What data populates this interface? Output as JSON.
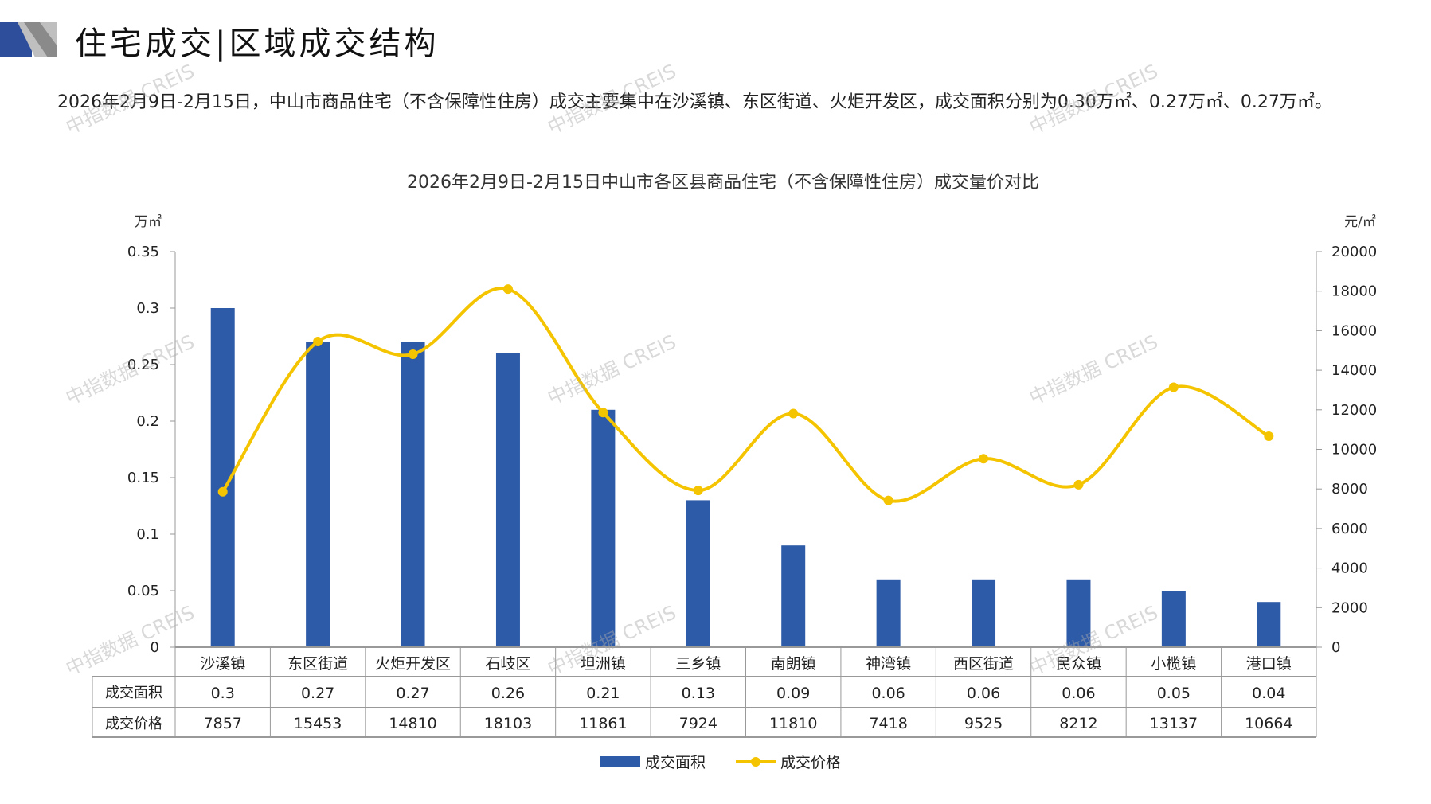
{
  "header": {
    "title": "住宅成交|区域成交结构"
  },
  "summary": "2026年2月9日-2月15日，中山市商品住宅（不含保障性住房）成交主要集中在沙溪镇、东区街道、火炬开发区，成交面积分别为0.30万㎡、0.27万㎡、0.27万㎡。",
  "watermark": "中指数据 CREIS",
  "colors": {
    "bar": "#2E5BA8",
    "line": "#F5C400",
    "axis": "#999999"
  },
  "chart_data": {
    "type": "bar+line",
    "title": "2026年2月9日-2月15日中山市各区县商品住宅（不含保障性住房）成交量价对比",
    "ylabel_left": "万㎡",
    "ylabel_right": "元/㎡",
    "ylim_left": [
      0,
      0.35
    ],
    "yticks_left": [
      "0",
      "0.05",
      "0.1",
      "0.15",
      "0.2",
      "0.25",
      "0.3",
      "0.35"
    ],
    "ylim_right": [
      0,
      20000
    ],
    "yticks_right": [
      "0",
      "2000",
      "4000",
      "6000",
      "8000",
      "10000",
      "12000",
      "14000",
      "16000",
      "18000",
      "20000"
    ],
    "categories": [
      "沙溪镇",
      "东区街道",
      "火炬开发区",
      "石岐区",
      "坦洲镇",
      "三乡镇",
      "南朗镇",
      "神湾镇",
      "西区街道",
      "民众镇",
      "小榄镇",
      "港口镇"
    ],
    "series": [
      {
        "name": "成交面积",
        "type": "bar",
        "axis": "left",
        "values": [
          0.3,
          0.27,
          0.27,
          0.26,
          0.21,
          0.13,
          0.09,
          0.06,
          0.06,
          0.06,
          0.05,
          0.04
        ]
      },
      {
        "name": "成交价格",
        "type": "line",
        "axis": "right",
        "values": [
          7857,
          15453,
          14810,
          18103,
          11861,
          7924,
          11810,
          7418,
          9525,
          8212,
          13137,
          10664
        ]
      }
    ],
    "legend_position": "bottom",
    "data_table": true
  }
}
